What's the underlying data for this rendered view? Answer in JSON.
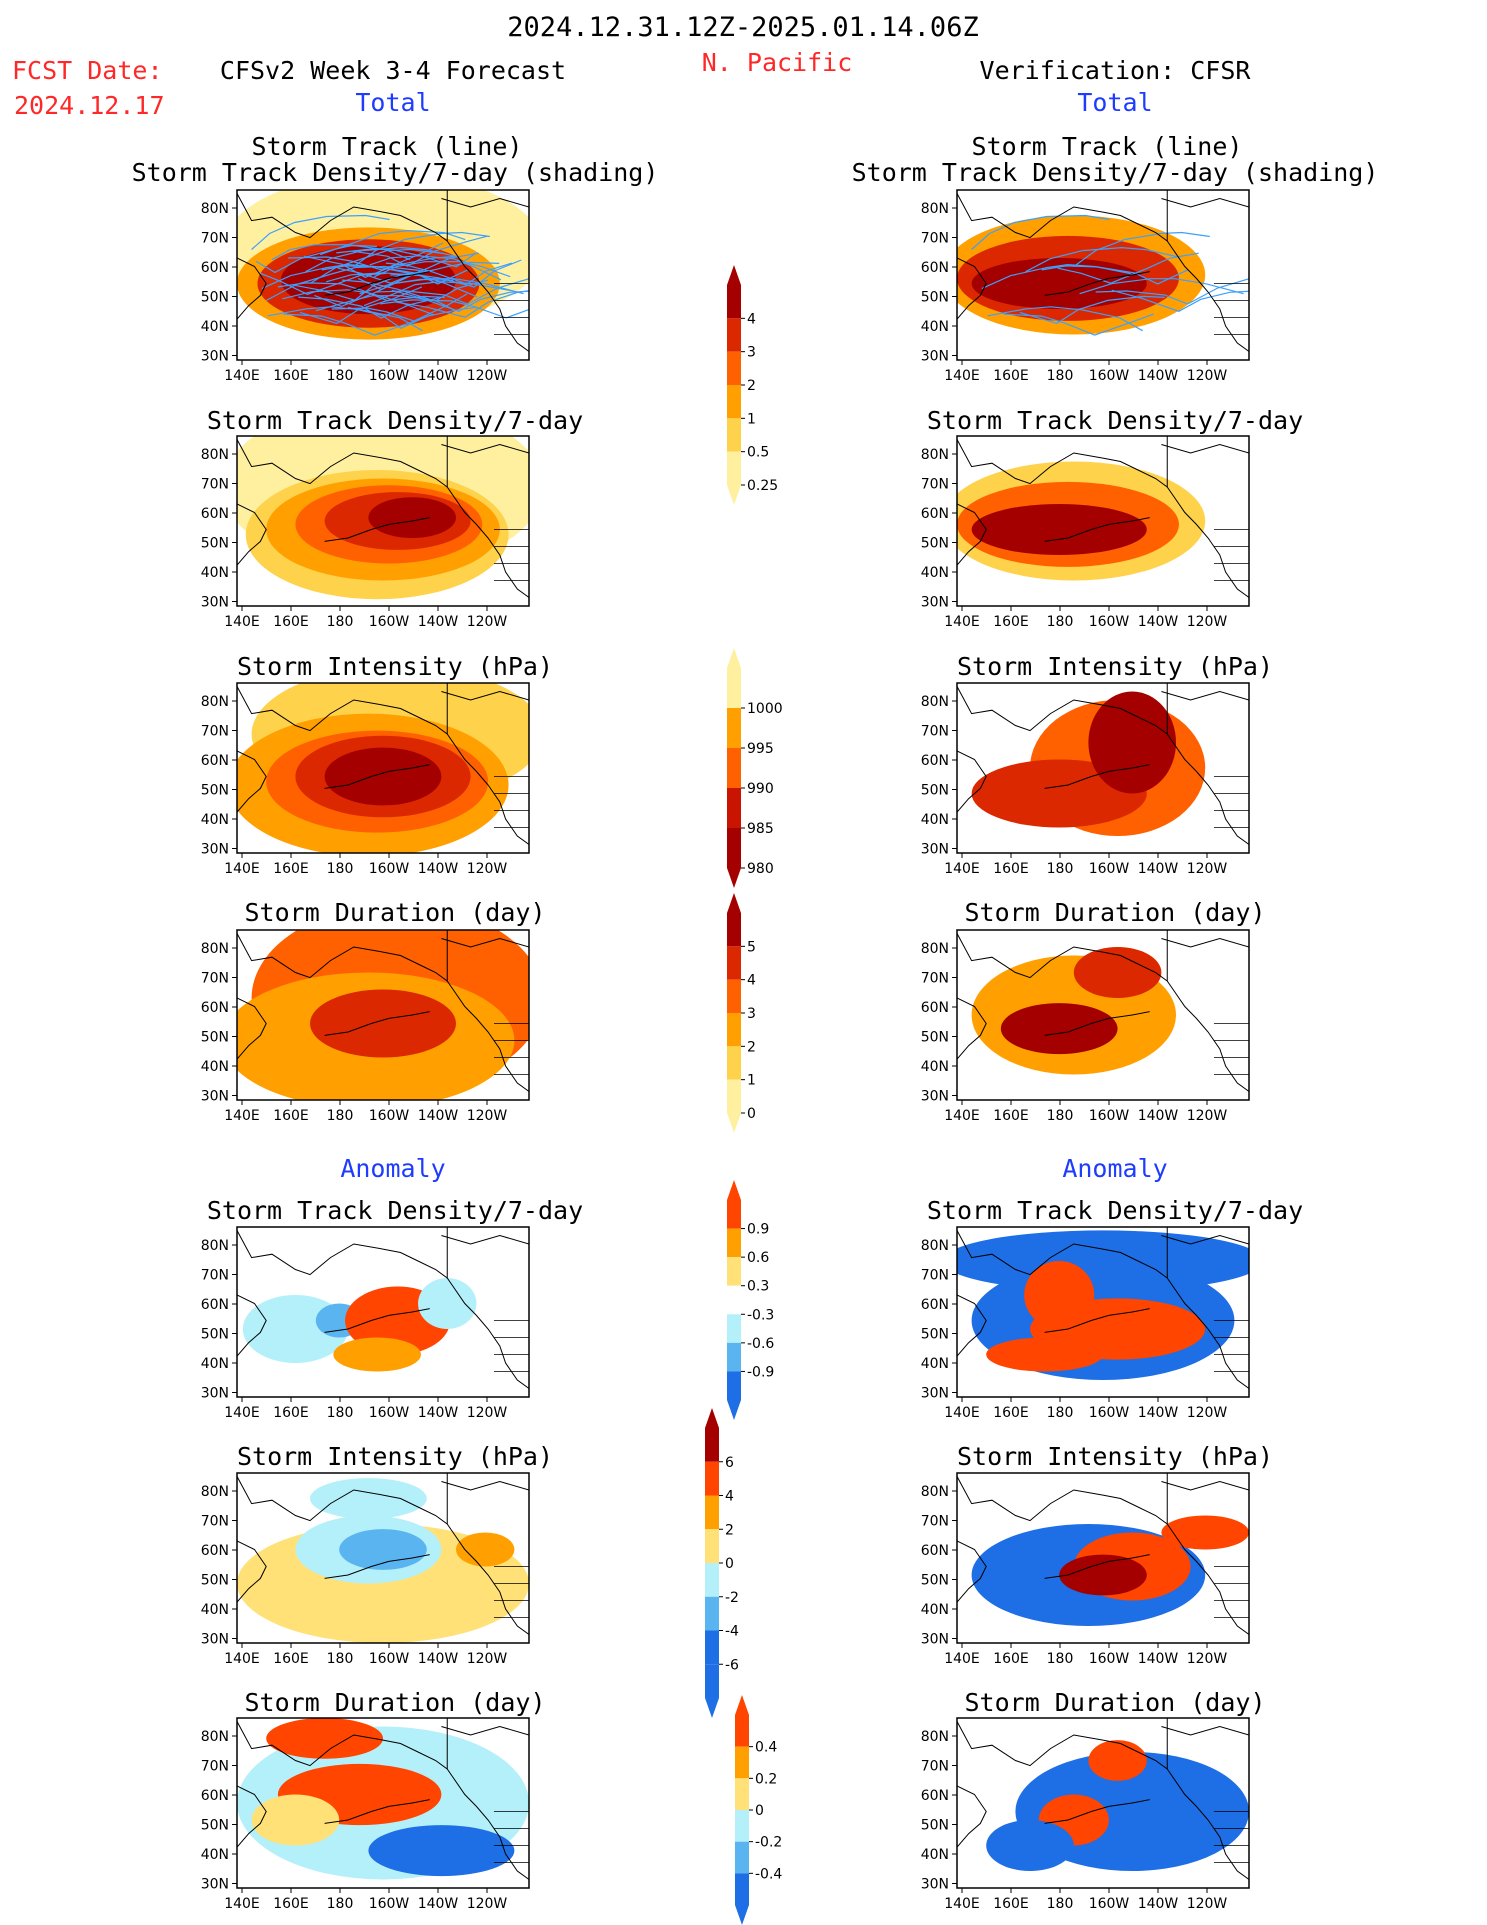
{
  "header": {
    "date_range": "2024.12.31.12Z-2025.01.14.06Z",
    "fcst_label": "FCST Date:",
    "fcst_date": "2024.12.17",
    "model": "CFSv2 Week 3-4 Forecast",
    "region": "N. Pacific",
    "verification": "Verification: CFSR"
  },
  "sections": {
    "total": "Total",
    "anomaly": "Anomaly"
  },
  "axes": {
    "lat_labels": [
      "80N",
      "70N",
      "60N",
      "50N",
      "40N",
      "30N"
    ],
    "lon_labels": [
      "140E",
      "160E",
      "180",
      "160W",
      "140W",
      "120W"
    ]
  },
  "panel_titles": {
    "track_line": "Storm Track (line)",
    "track_shading": "Storm Track Density/7-day (shading)",
    "density": "Storm Track Density/7-day",
    "intensity": "Storm Intensity (hPa)",
    "duration": "Storm Duration (day)"
  },
  "colorbars": [
    {
      "id": "density_total",
      "labels": [
        "4",
        "3",
        "2",
        "1",
        "0.5",
        "0.25"
      ],
      "colors": [
        "#a50000",
        "#dc2800",
        "#ff6000",
        "#ffa000",
        "#ffd24b",
        "#fff0a0"
      ]
    },
    {
      "id": "intensity_total",
      "labels": [
        "1000",
        "995",
        "990",
        "985",
        "980"
      ],
      "colors": [
        "#fff0a0",
        "#ffa000",
        "#ff6000",
        "#c81400",
        "#a50000"
      ]
    },
    {
      "id": "duration_total",
      "labels": [
        "5",
        "4",
        "3",
        "2",
        "1",
        "0"
      ],
      "colors": [
        "#a50000",
        "#dc2800",
        "#ff6000",
        "#ffa000",
        "#ffd24b",
        "#fff0a0"
      ]
    },
    {
      "id": "density_anom",
      "labels": [
        "0.9",
        "0.6",
        "0.3",
        "-0.3",
        "-0.6",
        "-0.9"
      ],
      "colors": [
        "#ff4500",
        "#ffa000",
        "#ffe178",
        "#ffffff",
        "#b4f0fa",
        "#5ab4f0",
        "#1e6ee6"
      ]
    },
    {
      "id": "intensity_anom",
      "labels": [
        "6",
        "4",
        "2",
        "0",
        "-2",
        "-4",
        "-6"
      ],
      "colors": [
        "#a50000",
        "#ff4500",
        "#ffa000",
        "#ffe178",
        "#b4f0fa",
        "#5ab4f0",
        "#1e6ee6",
        "#1e6ee6"
      ]
    },
    {
      "id": "duration_anom",
      "labels": [
        "0.4",
        "0.2",
        "0",
        "-0.2",
        "-0.4"
      ],
      "colors": [
        "#ff4500",
        "#ffa000",
        "#ffe178",
        "#b4f0fa",
        "#5ab4f0",
        "#1e6ee6"
      ]
    }
  ],
  "colors": {
    "title_red": "#ff2828",
    "section_blue": "#1e3cff",
    "track_line": "#3ca0ff"
  }
}
